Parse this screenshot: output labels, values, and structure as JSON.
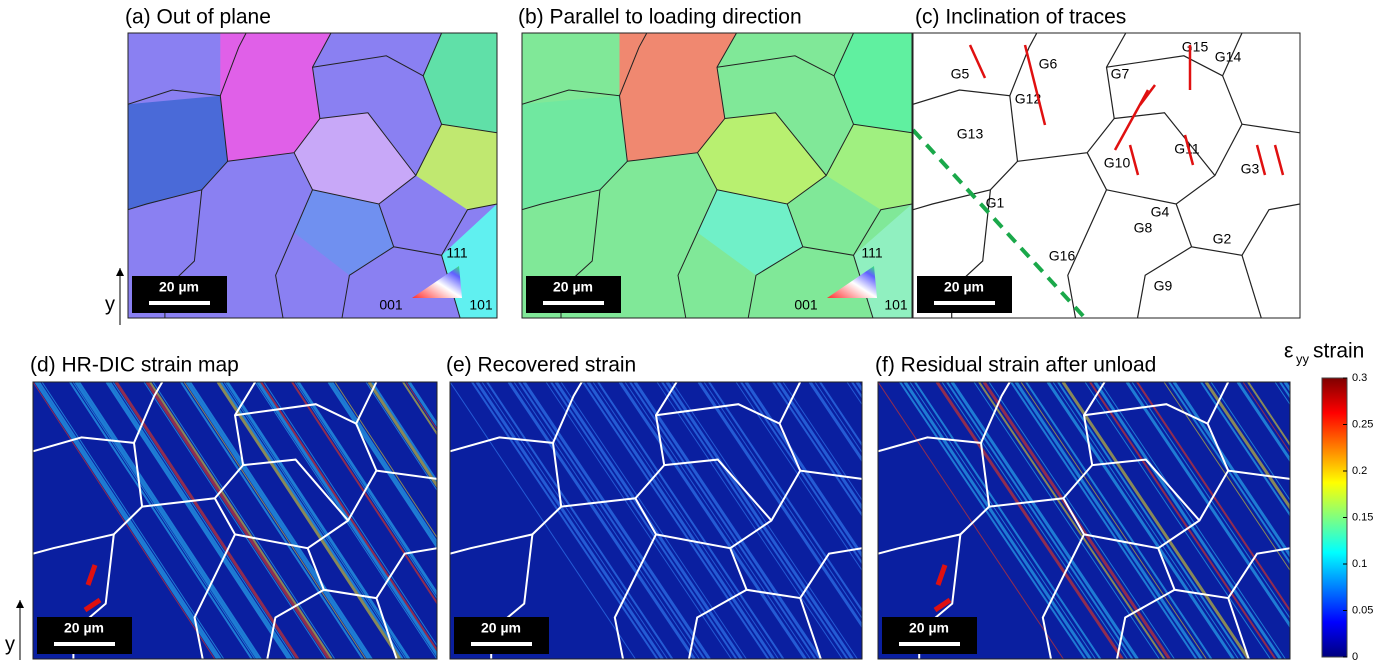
{
  "panels": [
    {
      "title": "(a) Out of plane",
      "scale_bar": "20 µm",
      "key_labels": [
        "111",
        "001",
        "101"
      ]
    },
    {
      "title": "(b) Parallel to loading direction",
      "scale_bar": "20 µm",
      "key_labels": [
        "111",
        "001",
        "101"
      ]
    },
    {
      "title": "(c) Inclination of traces",
      "scale_bar": "20 µm"
    },
    {
      "title": "(d) HR-DIC strain map",
      "scale_bar": "20 µm"
    },
    {
      "title": "(e) Recovered strain",
      "scale_bar": "20 µm"
    },
    {
      "title": "(f) Residual strain after unload",
      "scale_bar": "20 µm"
    }
  ],
  "grains": [
    "G1",
    "G2",
    "G3",
    "G4",
    "G5",
    "G6",
    "G7",
    "G8",
    "G9",
    "G10",
    "G11",
    "G12",
    "G13",
    "G14",
    "G15",
    "G16"
  ],
  "axis_label": "y",
  "colorbar": {
    "symbol": "ε",
    "subscript": "yy",
    "title": "strain",
    "lim": [
      0,
      0.3
    ],
    "ticks": [
      0,
      0.05,
      0.1,
      0.15,
      0.2,
      0.25,
      0.3
    ]
  }
}
